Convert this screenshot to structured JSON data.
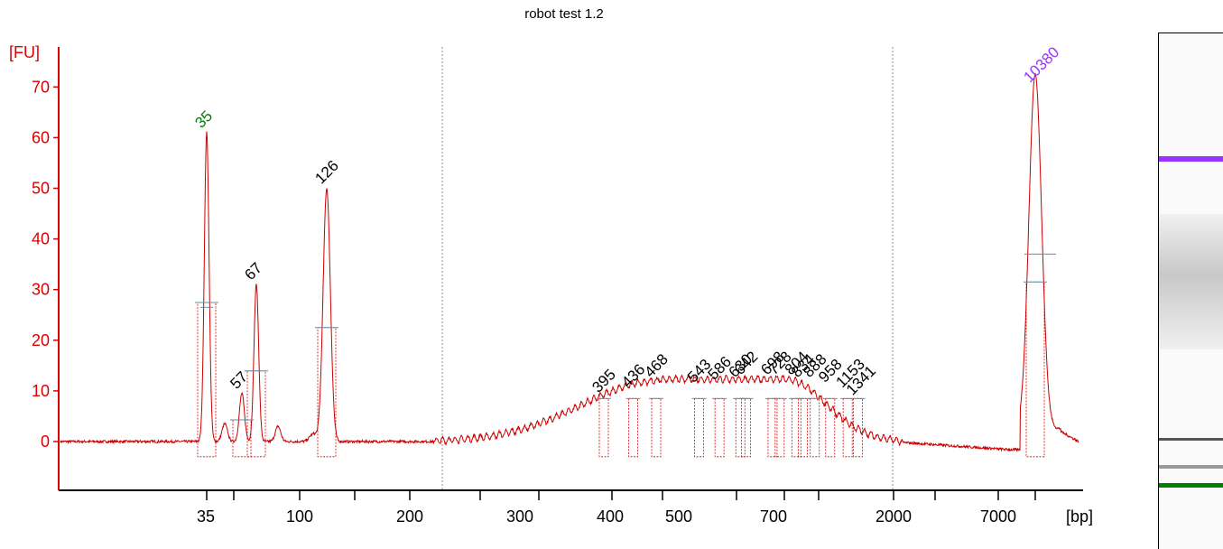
{
  "chart_data": {
    "type": "line",
    "title": "robot test 1.2",
    "xlabel": "[bp]",
    "ylabel": "[FU]",
    "ylim": [
      -10,
      75
    ],
    "yticks": [
      0,
      10,
      20,
      30,
      40,
      50,
      60,
      70
    ],
    "xtick_labels": [
      "35",
      "100",
      "200",
      "300",
      "400",
      "500",
      "700",
      "2000",
      "7000"
    ],
    "grid": false,
    "line_color": "#cc0000",
    "axis_color": "#dd0000",
    "marker_color": "#00008b",
    "peaks": [
      {
        "label": "35",
        "size_bp": 35,
        "height": 61,
        "color": "#008000"
      },
      {
        "label": "57",
        "size_bp": 57,
        "height": 9.5,
        "color": "#000000"
      },
      {
        "label": "67",
        "size_bp": 67,
        "height": 31,
        "color": "#000000"
      },
      {
        "label": "126",
        "size_bp": 126,
        "height": 50,
        "color": "#000000"
      },
      {
        "label": "395",
        "size_bp": 395,
        "height": 9,
        "color": "#000000"
      },
      {
        "label": "436",
        "size_bp": 436,
        "height": 10,
        "color": "#000000"
      },
      {
        "label": "468",
        "size_bp": 468,
        "height": 12,
        "color": "#000000"
      },
      {
        "label": "543",
        "size_bp": 543,
        "height": 11,
        "color": "#000000"
      },
      {
        "label": "586",
        "size_bp": 586,
        "height": 11.5,
        "color": "#000000"
      },
      {
        "label": "630",
        "size_bp": 630,
        "height": 12,
        "color": "#000000"
      },
      {
        "label": "642",
        "size_bp": 642,
        "height": 12.5,
        "color": "#000000"
      },
      {
        "label": "698",
        "size_bp": 698,
        "height": 12.5,
        "color": "#000000"
      },
      {
        "label": "728",
        "size_bp": 728,
        "height": 12.5,
        "color": "#000000"
      },
      {
        "label": "804",
        "size_bp": 804,
        "height": 12.5,
        "color": "#000000"
      },
      {
        "label": "834",
        "size_bp": 834,
        "height": 12,
        "color": "#000000"
      },
      {
        "label": "888",
        "size_bp": 888,
        "height": 12,
        "color": "#000000"
      },
      {
        "label": "958",
        "size_bp": 958,
        "height": 11,
        "color": "#000000"
      },
      {
        "label": "1153",
        "size_bp": 1153,
        "height": 10,
        "color": "#000000"
      },
      {
        "label": "1341",
        "size_bp": 1341,
        "height": 8.5,
        "color": "#000000"
      },
      {
        "label": "10380",
        "size_bp": 10380,
        "height": 70,
        "color": "#9933ff"
      }
    ],
    "gel_bands": [
      {
        "name": "upper-marker",
        "color": "#9933ff"
      },
      {
        "name": "smear",
        "color": "#c8c8c8"
      },
      {
        "name": "band-126",
        "color": "#555555"
      },
      {
        "name": "band-67",
        "color": "#999999"
      },
      {
        "name": "lower-marker",
        "color": "#008000"
      }
    ]
  }
}
